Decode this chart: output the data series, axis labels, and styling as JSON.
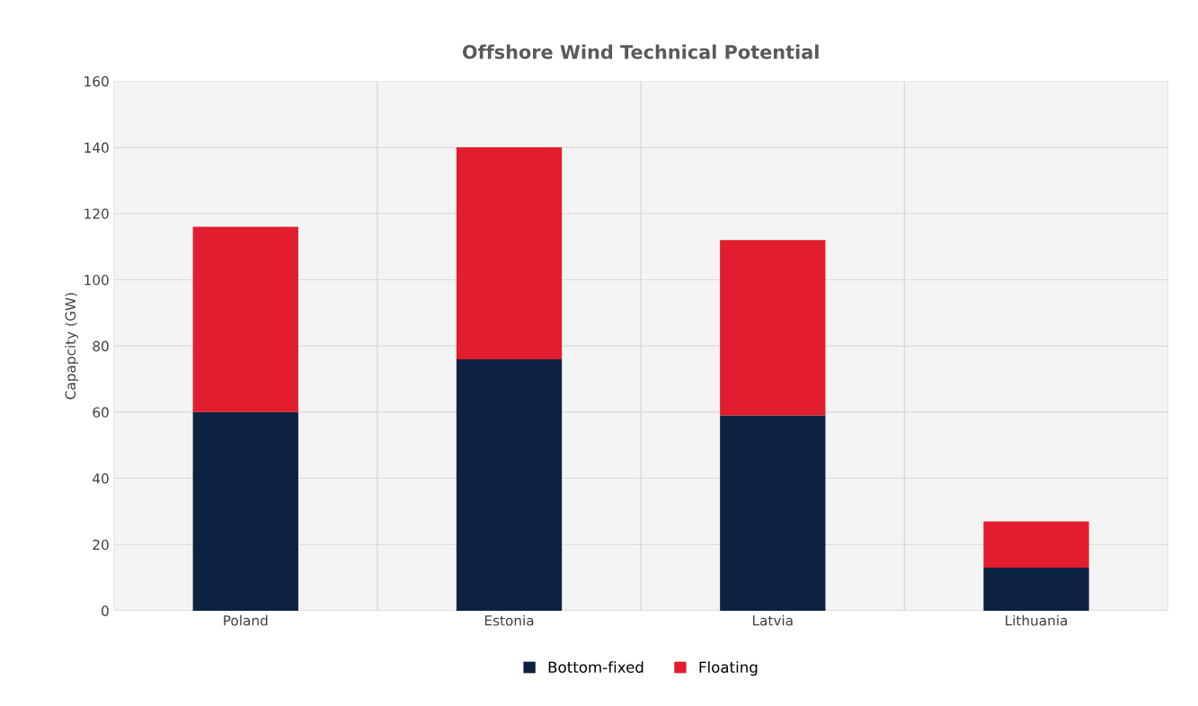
{
  "chart_data": {
    "type": "bar",
    "title": "Offshore Wind Technical Potential",
    "ylabel": "Capapcity (GW)",
    "categories": [
      "Poland",
      "Estonia",
      "Latvia",
      "Lithuania"
    ],
    "stacked": true,
    "series": [
      {
        "name": "Bottom-fixed",
        "color": "#0d2240",
        "values": [
          60,
          76,
          59,
          13
        ]
      },
      {
        "name": "Floating",
        "color": "#e21d2d",
        "values": [
          56,
          64,
          53,
          14
        ]
      }
    ],
    "ylim": [
      0,
      160
    ],
    "yticks": [
      0,
      20,
      40,
      60,
      80,
      100,
      120,
      140,
      160
    ],
    "grid": true,
    "legend": "bottom"
  }
}
